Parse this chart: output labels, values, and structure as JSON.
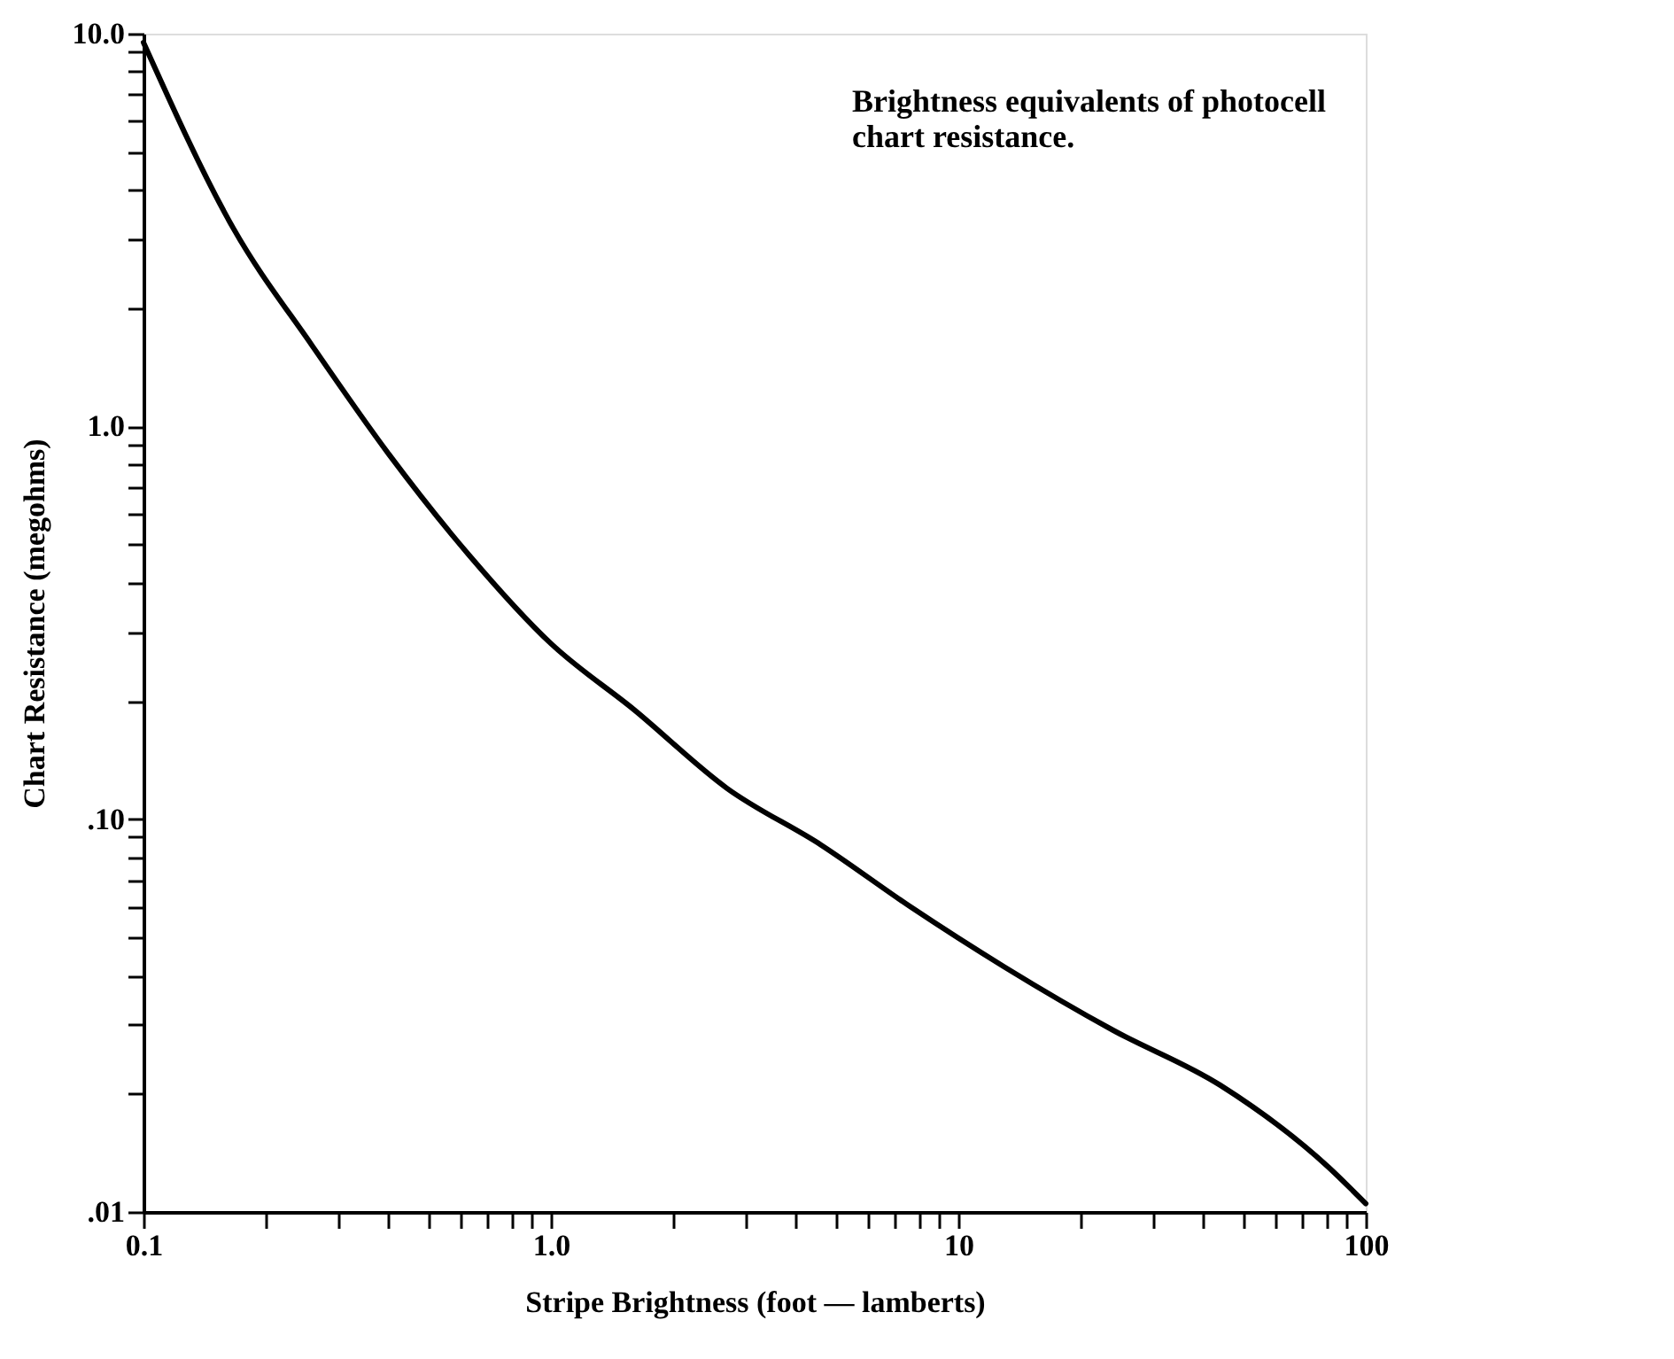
{
  "chart_data": {
    "type": "line",
    "xlabel": "Stripe Brightness (foot — lamberts)",
    "ylabel": "Chart Resistance (megohms)",
    "annotations": [
      "Brightness equivalents of photocell\nchart resistance."
    ],
    "log": "xy",
    "grid": false,
    "marker": "none",
    "line_style": "solid",
    "xlim": [
      0.1,
      100
    ],
    "ylim": [
      0.01,
      10
    ],
    "xticks": [
      {
        "value": 0.1,
        "label": "0.1"
      },
      {
        "value": 0.2,
        "label": null
      },
      {
        "value": 0.3,
        "label": null
      },
      {
        "value": 0.4,
        "label": null
      },
      {
        "value": 0.5,
        "label": null
      },
      {
        "value": 0.6,
        "label": null
      },
      {
        "value": 0.7,
        "label": null
      },
      {
        "value": 0.8,
        "label": null
      },
      {
        "value": 0.9,
        "label": null
      },
      {
        "value": 1,
        "label": "1.0"
      },
      {
        "value": 2,
        "label": null
      },
      {
        "value": 3,
        "label": null
      },
      {
        "value": 4,
        "label": null
      },
      {
        "value": 5,
        "label": null
      },
      {
        "value": 6,
        "label": null
      },
      {
        "value": 7,
        "label": null
      },
      {
        "value": 8,
        "label": null
      },
      {
        "value": 9,
        "label": null
      },
      {
        "value": 10,
        "label": "10"
      },
      {
        "value": 20,
        "label": null
      },
      {
        "value": 30,
        "label": null
      },
      {
        "value": 40,
        "label": null
      },
      {
        "value": 50,
        "label": null
      },
      {
        "value": 60,
        "label": null
      },
      {
        "value": 70,
        "label": null
      },
      {
        "value": 80,
        "label": null
      },
      {
        "value": 90,
        "label": null
      },
      {
        "value": 100,
        "label": "100"
      }
    ],
    "yticks": [
      {
        "value": 0.01,
        "label": ".01"
      },
      {
        "value": 0.02,
        "label": null
      },
      {
        "value": 0.03,
        "label": null
      },
      {
        "value": 0.04,
        "label": null
      },
      {
        "value": 0.05,
        "label": null
      },
      {
        "value": 0.06,
        "label": null
      },
      {
        "value": 0.07,
        "label": null
      },
      {
        "value": 0.08,
        "label": null
      },
      {
        "value": 0.09,
        "label": null
      },
      {
        "value": 0.1,
        "label": ".10"
      },
      {
        "value": 0.2,
        "label": null
      },
      {
        "value": 0.3,
        "label": null
      },
      {
        "value": 0.4,
        "label": null
      },
      {
        "value": 0.5,
        "label": null
      },
      {
        "value": 0.6,
        "label": null
      },
      {
        "value": 0.7,
        "label": null
      },
      {
        "value": 0.8,
        "label": null
      },
      {
        "value": 0.9,
        "label": null
      },
      {
        "value": 1,
        "label": "1.0"
      },
      {
        "value": 2,
        "label": null
      },
      {
        "value": 3,
        "label": null
      },
      {
        "value": 4,
        "label": null
      },
      {
        "value": 5,
        "label": null
      },
      {
        "value": 6,
        "label": null
      },
      {
        "value": 7,
        "label": null
      },
      {
        "value": 8,
        "label": null
      },
      {
        "value": 9,
        "label": null
      },
      {
        "value": 10,
        "label": "10.0"
      }
    ],
    "series": [
      {
        "color": "#000000",
        "x": [
          0.1,
          0.166,
          0.26,
          0.4,
          0.63,
          1.0,
          1.6,
          2.7,
          4.6,
          7.6,
          13,
          24,
          44,
          81,
          100
        ],
        "values": [
          9.5,
          3.2,
          1.6,
          0.85,
          0.47,
          0.28,
          0.19,
          0.12,
          0.086,
          0.06,
          0.042,
          0.029,
          0.021,
          0.013,
          0.0105
        ]
      }
    ]
  }
}
